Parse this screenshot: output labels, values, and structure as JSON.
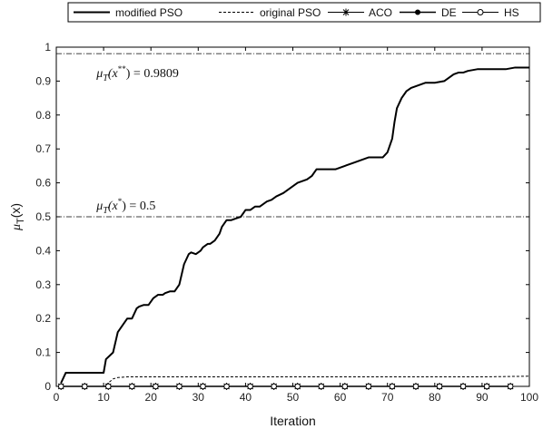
{
  "chart_data": {
    "type": "line",
    "xlabel": "Iteration",
    "ylabel": {
      "main": "μ",
      "sub": "T",
      "rest": "(x)"
    },
    "xlim": [
      0,
      100
    ],
    "ylim": [
      0,
      1
    ],
    "xticks": [
      0,
      10,
      20,
      30,
      40,
      50,
      60,
      70,
      80,
      90,
      100
    ],
    "yticks": [
      0,
      0.1,
      0.2,
      0.3,
      0.4,
      0.5,
      0.6,
      0.7,
      0.8,
      0.9,
      1
    ],
    "grid": false,
    "legend_position": "top",
    "reference_lines": [
      {
        "y": 0.9809,
        "label": {
          "mu": "μ",
          "sub": "T",
          "open": "(x",
          "sup": "**",
          "close": ") = 0.9809"
        }
      },
      {
        "y": 0.5,
        "label": {
          "mu": "μ",
          "sub": "T",
          "open": "(x",
          "sup": "*",
          "close": ") = 0.5"
        }
      }
    ],
    "series": [
      {
        "name": "modified PSO",
        "style": "solid",
        "x": [
          1,
          2,
          3,
          10,
          10.5,
          12,
          13,
          13.5,
          14,
          15,
          16,
          17,
          17.5,
          18.5,
          19.5,
          20.5,
          21.5,
          22.5,
          23,
          24,
          25,
          26,
          27,
          28,
          28.5,
          29.5,
          30.5,
          31,
          32,
          32.5,
          33.5,
          34.5,
          35,
          36,
          37,
          38,
          39,
          40,
          41,
          42,
          43,
          43.5,
          44.5,
          45.5,
          46.5,
          48,
          49,
          50,
          51,
          53,
          54,
          55,
          57,
          59,
          61,
          63,
          64,
          65,
          66,
          68,
          69,
          70,
          71,
          71.5,
          72,
          73,
          74,
          75,
          76,
          77,
          78,
          79,
          80,
          82,
          83,
          84,
          85,
          86,
          87,
          89,
          91,
          93,
          95,
          97,
          100
        ],
        "y": [
          0.01,
          0.04,
          0.04,
          0.04,
          0.08,
          0.1,
          0.16,
          0.17,
          0.18,
          0.2,
          0.2,
          0.23,
          0.235,
          0.24,
          0.24,
          0.26,
          0.27,
          0.27,
          0.275,
          0.28,
          0.28,
          0.3,
          0.36,
          0.39,
          0.395,
          0.39,
          0.4,
          0.41,
          0.42,
          0.42,
          0.43,
          0.45,
          0.47,
          0.49,
          0.49,
          0.495,
          0.5,
          0.52,
          0.52,
          0.53,
          0.53,
          0.535,
          0.545,
          0.55,
          0.56,
          0.57,
          0.58,
          0.59,
          0.6,
          0.61,
          0.62,
          0.64,
          0.64,
          0.64,
          0.65,
          0.66,
          0.665,
          0.67,
          0.675,
          0.675,
          0.675,
          0.69,
          0.73,
          0.78,
          0.82,
          0.85,
          0.87,
          0.88,
          0.885,
          0.89,
          0.895,
          0.895,
          0.895,
          0.9,
          0.91,
          0.92,
          0.925,
          0.925,
          0.93,
          0.935,
          0.935,
          0.935,
          0.935,
          0.94,
          0.94
        ]
      },
      {
        "name": "original PSO",
        "style": "dashed",
        "x": [
          0,
          10,
          11,
          12,
          13,
          15,
          20,
          30,
          40,
          50,
          60,
          70,
          80,
          90,
          100
        ],
        "y": [
          0,
          0,
          0.01,
          0.022,
          0.026,
          0.028,
          0.028,
          0.028,
          0.028,
          0.028,
          0.028,
          0.028,
          0.028,
          0.028,
          0.03
        ]
      },
      {
        "name": "ACO",
        "style": "star",
        "x": [
          1,
          6,
          11,
          16,
          21,
          26,
          31,
          36,
          41,
          46,
          51,
          56,
          61,
          66,
          71,
          76,
          81,
          86,
          91,
          96
        ],
        "y": [
          0,
          0,
          0,
          0,
          0,
          0,
          0,
          0,
          0,
          0,
          0,
          0,
          0,
          0,
          0,
          0,
          0,
          0,
          0,
          0
        ]
      },
      {
        "name": "DE",
        "style": "dot",
        "x": [
          1,
          6,
          11,
          16,
          21,
          26,
          31,
          36,
          41,
          46,
          51,
          56,
          61,
          66,
          71,
          76,
          81,
          86,
          91,
          96
        ],
        "y": [
          0,
          0,
          0,
          0,
          0,
          0,
          0,
          0,
          0,
          0,
          0,
          0,
          0,
          0,
          0,
          0,
          0,
          0,
          0,
          0
        ]
      },
      {
        "name": "HS",
        "style": "circle",
        "x": [
          1,
          6,
          11,
          16,
          21,
          26,
          31,
          36,
          41,
          46,
          51,
          56,
          61,
          66,
          71,
          76,
          81,
          86,
          91,
          96
        ],
        "y": [
          0,
          0,
          0,
          0,
          0,
          0,
          0,
          0,
          0,
          0,
          0,
          0,
          0,
          0,
          0,
          0,
          0,
          0,
          0,
          0
        ]
      }
    ]
  }
}
